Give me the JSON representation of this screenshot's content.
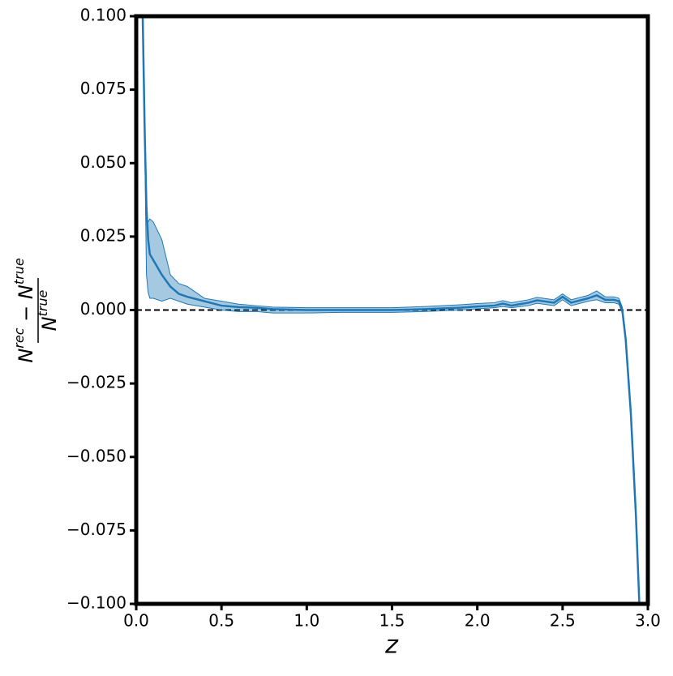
{
  "chart_data": {
    "type": "line",
    "xlabel": "z",
    "ylabel": {
      "numerator": [
        "N",
        "rec",
        " − N",
        "true"
      ],
      "denominator": [
        "N",
        "true"
      ]
    },
    "x": [
      0.038,
      0.05,
      0.06,
      0.07,
      0.08,
      0.1,
      0.15,
      0.2,
      0.25,
      0.3,
      0.4,
      0.5,
      0.6,
      0.7,
      0.8,
      1.0,
      1.2,
      1.5,
      1.7,
      1.9,
      2.0,
      2.1,
      2.15,
      2.2,
      2.3,
      2.35,
      2.45,
      2.5,
      2.55,
      2.65,
      2.7,
      2.75,
      2.8,
      2.83,
      2.85,
      2.87,
      2.9,
      2.93,
      2.95
    ],
    "series": [
      {
        "color": "#1f77b4",
        "values": [
          0.1,
          0.06,
          0.035,
          0.024,
          0.019,
          0.017,
          0.012,
          0.008,
          0.0055,
          0.0045,
          0.003,
          0.0015,
          0.001,
          0.0008,
          0.0003,
          0,
          0,
          0,
          0.0003,
          0.0008,
          0.0012,
          0.0015,
          0.0022,
          0.0015,
          0.0025,
          0.0033,
          0.0025,
          0.0045,
          0.0025,
          0.004,
          0.005,
          0.0035,
          0.0035,
          0.003,
          0,
          -0.01,
          -0.035,
          -0.07,
          -0.1
        ],
        "upper": [
          0.1,
          0.065,
          0.03,
          0.03,
          0.031,
          0.03,
          0.024,
          0.012,
          0.009,
          0.008,
          0.004,
          0.003,
          0.002,
          0.0015,
          0.001,
          0.0008,
          0.0008,
          0.0008,
          0.0012,
          0.0018,
          0.0022,
          0.0025,
          0.0032,
          0.0025,
          0.0035,
          0.0043,
          0.0035,
          0.0055,
          0.0035,
          0.005,
          0.0065,
          0.0045,
          0.0045,
          0.004,
          0.001,
          -0.009,
          -0.034,
          -0.069,
          -0.099
        ],
        "lower": [
          0.1,
          0.055,
          0.012,
          0.006,
          0.004,
          0.004,
          0.003,
          0.004,
          0.003,
          0.002,
          0.001,
          0,
          -0.0005,
          -0.0005,
          -0.001,
          -0.001,
          -0.0008,
          -0.0008,
          -0.0005,
          0,
          0.0004,
          0.0008,
          0.0012,
          0.0008,
          0.0015,
          0.0023,
          0.0015,
          0.0035,
          0.0015,
          0.003,
          0.0035,
          0.0025,
          0.0025,
          0.002,
          -0.001,
          -0.011,
          -0.036,
          -0.071,
          -0.1
        ]
      }
    ],
    "hline": 0,
    "xlim": [
      0,
      3
    ],
    "ylim": [
      -0.1,
      0.1
    ],
    "xticks": [
      {
        "value": 0,
        "label": "0.0"
      },
      0.5,
      {
        "value": 1,
        "label": "1.0"
      },
      1.5,
      {
        "value": 2,
        "label": "2.0"
      },
      2.5,
      {
        "value": 3,
        "label": "3.0"
      }
    ],
    "yticks": [
      {
        "value": -0.1,
        "label": "−0.100"
      },
      {
        "value": -0.075,
        "label": "−0.075"
      },
      {
        "value": -0.05,
        "label": "−0.050"
      },
      {
        "value": -0.025,
        "label": "−0.025"
      },
      {
        "value": 0,
        "label": "0.000"
      },
      0.025,
      {
        "value": 0.05,
        "label": "0.050"
      },
      0.075,
      {
        "value": 0.1,
        "label": "0.100"
      }
    ]
  }
}
